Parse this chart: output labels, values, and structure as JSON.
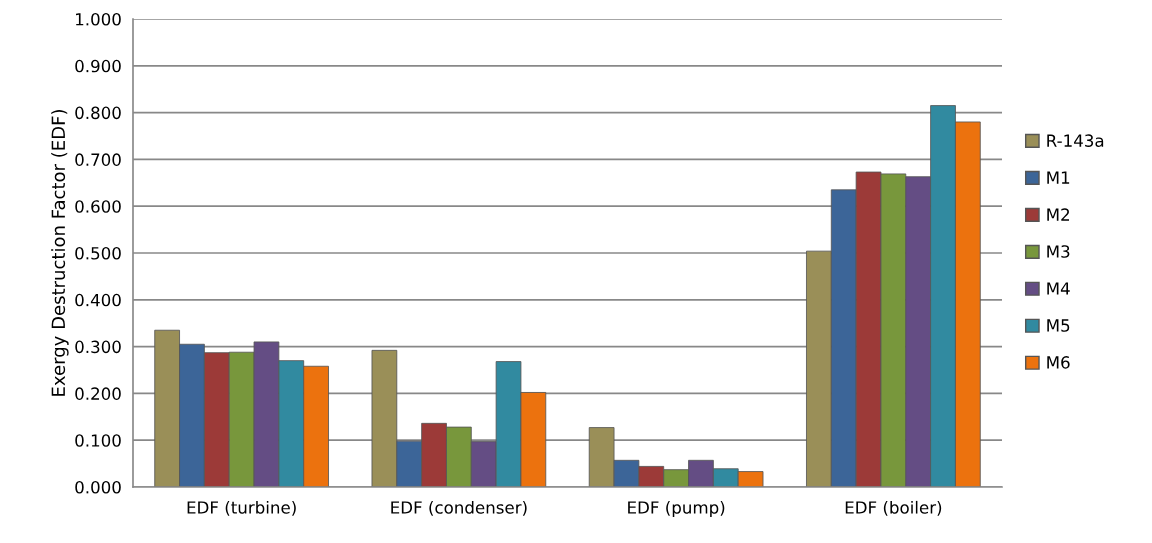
{
  "chart_data": {
    "type": "bar",
    "ylabel": "Exergy Destruction Factor (EDF)",
    "categories": [
      "EDF (turbine)",
      "EDF (condenser)",
      "EDF (pump)",
      "EDF (boiler)"
    ],
    "series": [
      {
        "name": "R-143a",
        "color": "#9a8f58",
        "values": [
          0.335,
          0.292,
          0.127,
          0.504
        ]
      },
      {
        "name": "M1",
        "color": "#3c6598",
        "values": [
          0.305,
          0.098,
          0.057,
          0.635
        ]
      },
      {
        "name": "M2",
        "color": "#9c3a38",
        "values": [
          0.287,
          0.136,
          0.044,
          0.673
        ]
      },
      {
        "name": "M3",
        "color": "#78973c",
        "values": [
          0.288,
          0.128,
          0.037,
          0.669
        ]
      },
      {
        "name": "M4",
        "color": "#644d84",
        "values": [
          0.31,
          0.097,
          0.057,
          0.663
        ]
      },
      {
        "name": "M5",
        "color": "#318aa0",
        "values": [
          0.27,
          0.268,
          0.039,
          0.815
        ]
      },
      {
        "name": "M6",
        "color": "#ec720e",
        "values": [
          0.258,
          0.202,
          0.033,
          0.78
        ]
      }
    ],
    "ylim": [
      0,
      1
    ],
    "yticks": [
      {
        "value": 0,
        "label": "0.000"
      },
      {
        "value": 0.1,
        "label": "0.100"
      },
      {
        "value": 0.2,
        "label": "0.200"
      },
      {
        "value": 0.3,
        "label": "0.300"
      },
      {
        "value": 0.4,
        "label": "0.400"
      },
      {
        "value": 0.5,
        "label": "0.500"
      },
      {
        "value": 0.6,
        "label": "0.600"
      },
      {
        "value": 0.7,
        "label": "0.700"
      },
      {
        "value": 0.8,
        "label": "0.800"
      },
      {
        "value": 0.9,
        "label": "0.900"
      },
      {
        "value": 1.0,
        "label": "1.000"
      }
    ],
    "grid": "y",
    "legend": "right"
  }
}
